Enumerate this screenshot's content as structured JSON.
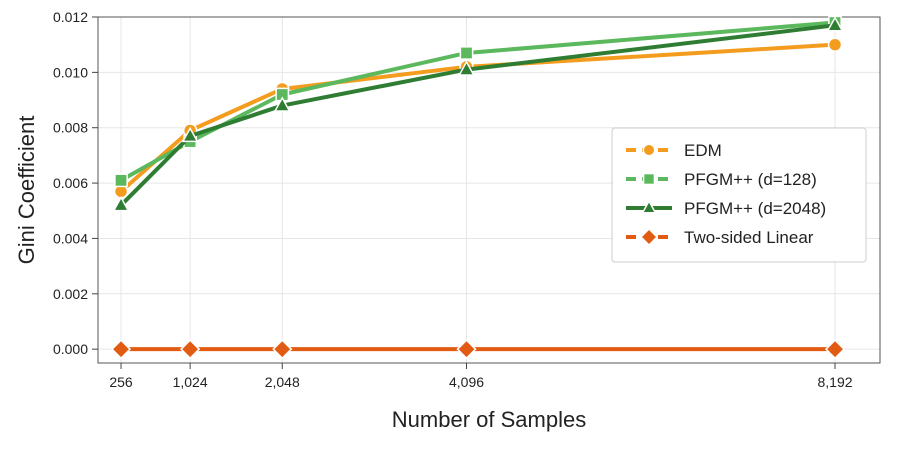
{
  "chart_data": {
    "type": "line",
    "xlabel": "Number of Samples",
    "ylabel": "Gini Coefficient",
    "x": [
      256,
      1024,
      2048,
      4096,
      8192
    ],
    "x_tick_labels": [
      "256",
      "1,024",
      "2,048",
      "4,096",
      "8,192"
    ],
    "y_ticks": [
      0.0,
      0.002,
      0.004,
      0.006,
      0.008,
      0.01,
      0.012
    ],
    "y_tick_labels": [
      "0.000",
      "0.002",
      "0.004",
      "0.006",
      "0.008",
      "0.010",
      "0.012"
    ],
    "ylim": [
      -0.0005,
      0.012
    ],
    "grid": true,
    "legend_position": "center-right",
    "series": [
      {
        "name": "EDM",
        "color": "#f39c1e",
        "marker": "circle",
        "dash": true,
        "values": [
          0.0057,
          0.0079,
          0.0094,
          0.0102,
          0.011
        ]
      },
      {
        "name": "PFGM++ (d=128)",
        "color": "#5cb85c",
        "marker": "square",
        "dash": true,
        "values": [
          0.0061,
          0.0075,
          0.0092,
          0.0107,
          0.0118
        ]
      },
      {
        "name": "PFGM++ (d=2048)",
        "color": "#2e7d32",
        "marker": "triangle",
        "dash": false,
        "values": [
          0.0052,
          0.0077,
          0.0088,
          0.0101,
          0.0117
        ]
      },
      {
        "name": "Two-sided Linear",
        "color": "#e25b12",
        "marker": "diamond",
        "dash": true,
        "values": [
          0.0,
          0.0,
          0.0,
          0.0,
          0.0
        ]
      }
    ]
  }
}
